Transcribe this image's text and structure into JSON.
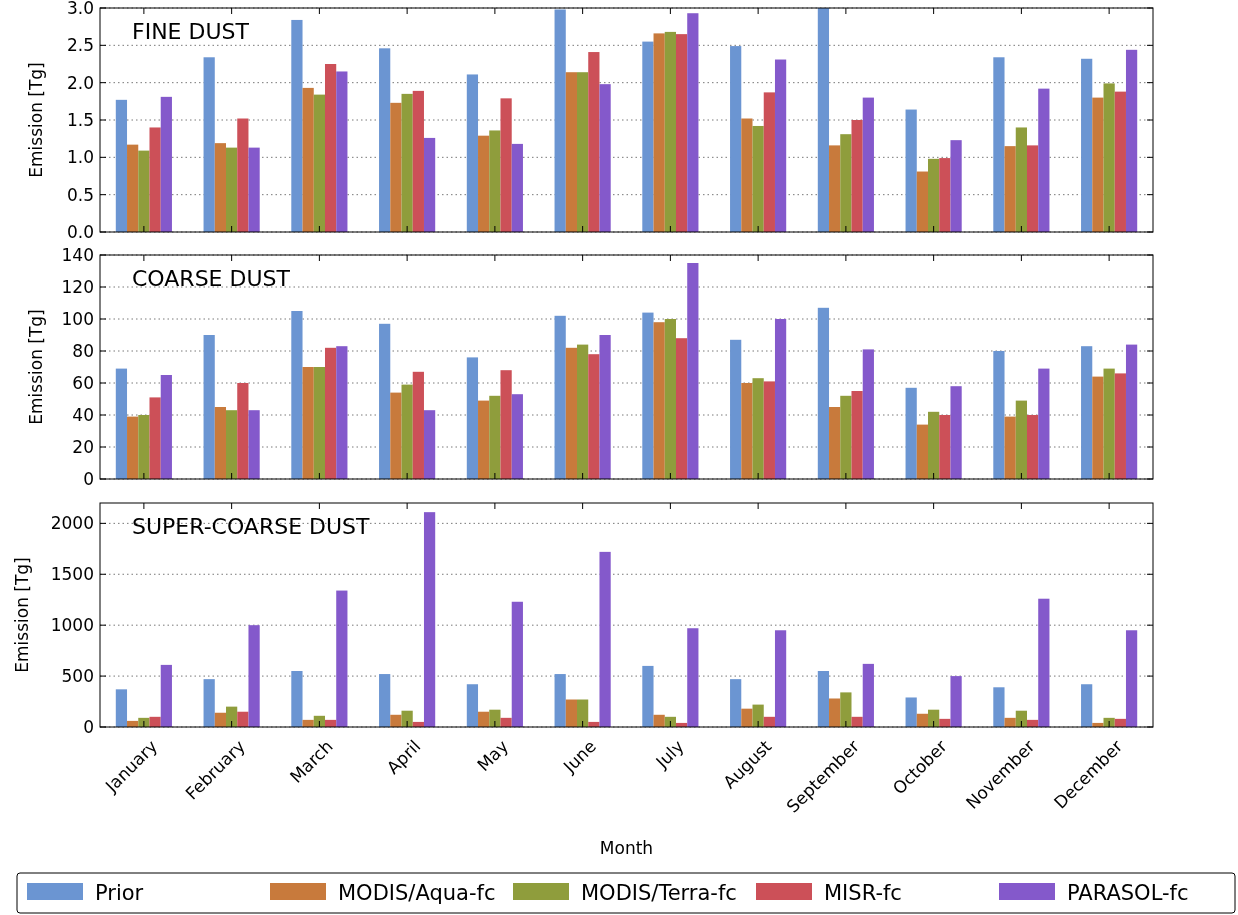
{
  "chart_data": [
    {
      "type": "bar",
      "title": "FINE DUST",
      "ylabel": "Emission [Tg]",
      "ylim": [
        0,
        3
      ],
      "yticks": [
        {
          "value": 0,
          "label": "0.0"
        },
        0.5,
        {
          "value": 1,
          "label": "1.0"
        },
        1.5,
        {
          "value": 2,
          "label": "2.0"
        },
        2.5,
        {
          "value": 3,
          "label": "3.0"
        }
      ],
      "grid": "y",
      "tick_labels": "y",
      "series": [
        {
          "color": "#6b95d2",
          "values": [
            1.77,
            2.34,
            2.84,
            2.46,
            2.11,
            2.98,
            2.55,
            2.49,
            3.0,
            1.64,
            2.34,
            2.32
          ]
        },
        {
          "color": "#c87a3c",
          "values": [
            1.17,
            1.19,
            1.93,
            1.73,
            1.29,
            2.14,
            2.66,
            1.52,
            1.16,
            0.81,
            1.15,
            1.8
          ]
        },
        {
          "color": "#8f9d3c",
          "values": [
            1.09,
            1.13,
            1.84,
            1.85,
            1.36,
            2.14,
            2.68,
            1.42,
            1.31,
            0.98,
            1.4,
            1.99
          ]
        },
        {
          "color": "#cc5058",
          "values": [
            1.4,
            1.52,
            2.25,
            1.89,
            1.79,
            2.41,
            2.65,
            1.87,
            1.5,
            0.99,
            1.16,
            1.88
          ]
        },
        {
          "color": "#8459cb",
          "values": [
            1.81,
            1.13,
            2.15,
            1.26,
            1.18,
            1.98,
            2.93,
            2.31,
            1.8,
            1.23,
            1.92,
            2.44
          ]
        }
      ]
    },
    {
      "type": "bar",
      "title": "COARSE DUST",
      "ylabel": "Emission [Tg]",
      "ylim": [
        0,
        140
      ],
      "yticks": [
        0,
        20,
        40,
        60,
        80,
        100,
        120,
        140
      ],
      "grid": "y",
      "tick_labels": "y",
      "series": [
        {
          "color": "#6b95d2",
          "values": [
            69,
            90,
            105,
            97,
            76,
            102,
            104,
            87,
            107,
            57,
            80,
            83
          ]
        },
        {
          "color": "#c87a3c",
          "values": [
            39,
            45,
            70,
            54,
            49,
            82,
            98,
            60,
            45,
            34,
            39,
            64
          ]
        },
        {
          "color": "#8f9d3c",
          "values": [
            40,
            43,
            70,
            59,
            52,
            84,
            100,
            63,
            52,
            42,
            49,
            69
          ]
        },
        {
          "color": "#cc5058",
          "values": [
            51,
            60,
            82,
            67,
            68,
            78,
            88,
            61,
            55,
            40,
            40,
            66
          ]
        },
        {
          "color": "#8459cb",
          "values": [
            65,
            43,
            83,
            43,
            53,
            90,
            135,
            100,
            81,
            58,
            69,
            84
          ]
        }
      ]
    },
    {
      "type": "bar",
      "title": "SUPER-COARSE DUST",
      "ylabel": "Emission [Tg]",
      "xlabel": "Month",
      "categories": [
        "January",
        "February",
        "March",
        "April",
        "May",
        "June",
        "July",
        "August",
        "September",
        "October",
        "November",
        "December"
      ],
      "ylim": [
        0,
        2200
      ],
      "yticks": [
        0,
        500,
        1000,
        1500,
        2000
      ],
      "grid": "y",
      "legend": "bottom",
      "series": [
        {
          "name": "Prior",
          "color": "#6b95d2",
          "values": [
            370,
            470,
            550,
            520,
            420,
            520,
            600,
            470,
            550,
            290,
            390,
            420
          ]
        },
        {
          "name": "MODIS/Aqua-fc",
          "color": "#c87a3c",
          "values": [
            60,
            140,
            70,
            120,
            150,
            270,
            120,
            180,
            280,
            130,
            90,
            40
          ]
        },
        {
          "name": "MODIS/Terra-fc",
          "color": "#8f9d3c",
          "values": [
            90,
            200,
            110,
            160,
            170,
            270,
            100,
            220,
            340,
            170,
            160,
            90
          ]
        },
        {
          "name": "MISR-fc",
          "color": "#cc5058",
          "values": [
            100,
            150,
            70,
            50,
            90,
            50,
            40,
            100,
            100,
            80,
            70,
            80
          ]
        },
        {
          "name": "PARASOL-fc",
          "color": "#8459cb",
          "values": [
            610,
            1000,
            1340,
            2110,
            1230,
            1720,
            970,
            950,
            620,
            500,
            1260,
            950
          ]
        }
      ]
    }
  ]
}
